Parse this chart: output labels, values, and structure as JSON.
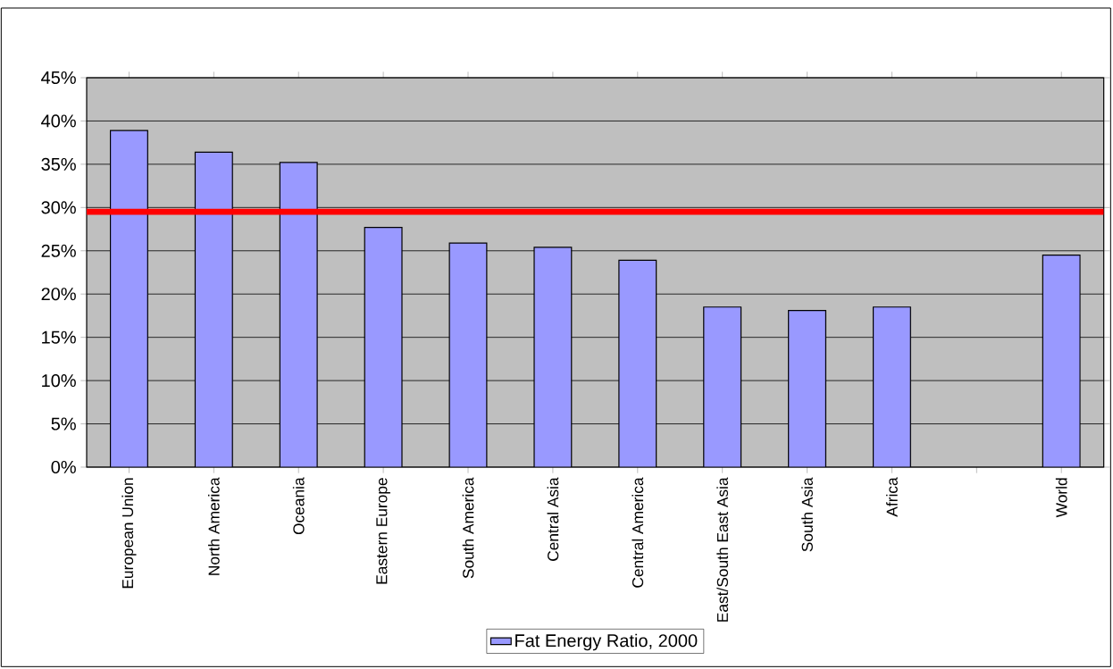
{
  "chart_data": {
    "type": "bar",
    "categories": [
      "European Union",
      "North America",
      "Oceania",
      "Eastern Europe",
      "South America",
      "Central Asia",
      "Central America",
      "East/South East Asia",
      "South Asia",
      "Africa",
      null,
      "World"
    ],
    "series": [
      {
        "name": "Fat Energy Ratio, 2000",
        "color": "#9999ff",
        "values": [
          38.9,
          36.4,
          35.2,
          27.7,
          25.9,
          25.4,
          23.9,
          18.5,
          18.1,
          18.5,
          null,
          24.5
        ]
      }
    ],
    "ylim": [
      0,
      45
    ],
    "yticks": [
      {
        "value": 0,
        "label": "0%"
      },
      {
        "value": 5,
        "label": "5%"
      },
      {
        "value": 10,
        "label": "10%"
      },
      {
        "value": 15,
        "label": "15%"
      },
      {
        "value": 20,
        "label": "20%"
      },
      {
        "value": 25,
        "label": "25%"
      },
      {
        "value": 30,
        "label": "30%"
      },
      {
        "value": 35,
        "label": "35%"
      },
      {
        "value": 40,
        "label": "40%"
      },
      {
        "value": 45,
        "label": "45%"
      }
    ],
    "ref_lines": [
      {
        "axis": "y",
        "value": 29.5,
        "color": "#ff0000"
      }
    ],
    "grid": "y",
    "legend": "bottom"
  }
}
